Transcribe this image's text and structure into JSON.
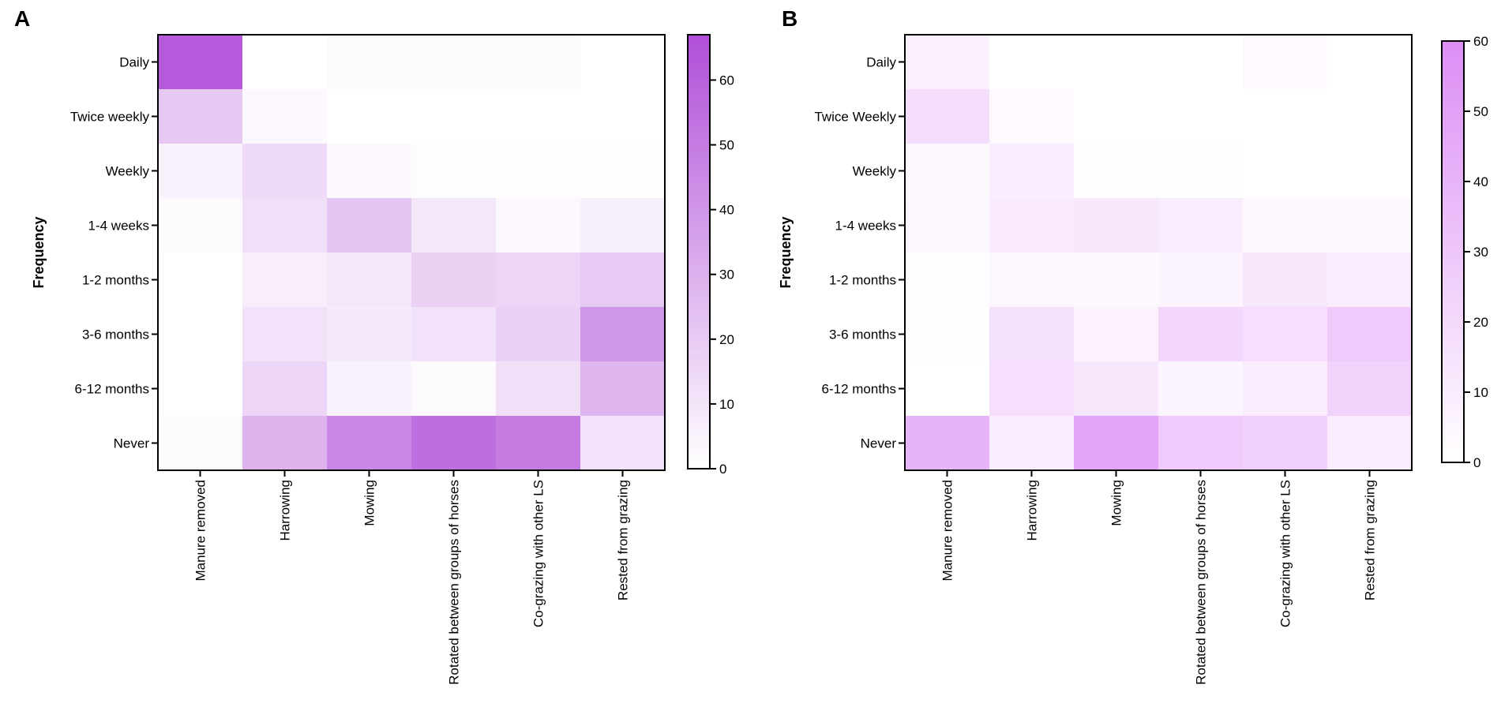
{
  "chart_data": [
    {
      "panel": "A",
      "type": "heatmap",
      "ylabel": "Frequency",
      "rows": [
        "Daily",
        "Twice weekly",
        "Weekly",
        "1-4 weeks",
        "1-2 months",
        "3-6 months",
        "6-12 months",
        "Never"
      ],
      "columns": [
        "Manure removed",
        "Harrowing",
        "Mowing",
        "Rotated between groups of horses",
        "Co-grazing with other LS",
        "Rested from grazing"
      ],
      "values": [
        [
          63,
          0,
          2,
          2,
          2,
          0
        ],
        [
          21,
          3,
          0,
          0,
          0,
          0
        ],
        [
          5,
          14,
          3,
          1,
          1,
          1
        ],
        [
          2,
          12,
          22,
          9,
          3,
          6
        ],
        [
          0,
          7,
          9,
          17,
          16,
          20
        ],
        [
          0,
          11,
          8,
          11,
          18,
          40
        ],
        [
          0,
          16,
          5,
          2,
          12,
          28
        ],
        [
          2,
          29,
          45,
          55,
          50,
          11
        ]
      ],
      "color_range": [
        0,
        67
      ],
      "colorbar_ticks": [
        0,
        10,
        20,
        30,
        40,
        50,
        60
      ],
      "color_min": "#ffffff",
      "color_max": "#b04fd8"
    },
    {
      "panel": "B",
      "type": "heatmap",
      "ylabel": "Frequency",
      "rows": [
        "Daily",
        "Twice Weekly",
        "Weekly",
        "1-4 weeks",
        "1-2 months",
        "3-6 months",
        "6-12 months",
        "Never"
      ],
      "columns": [
        "Manure removed",
        "Harrowing",
        "Mowing",
        "Rotated between groups of horses",
        "Co-grazing with other LS",
        "Rested from grazing"
      ],
      "values": [
        [
          8,
          0,
          0,
          0,
          3,
          0
        ],
        [
          18,
          3,
          0,
          0,
          0,
          0
        ],
        [
          4,
          9,
          1,
          1,
          0,
          0
        ],
        [
          5,
          11,
          12,
          10,
          4,
          4
        ],
        [
          1,
          5,
          4,
          6,
          12,
          10
        ],
        [
          1,
          16,
          7,
          22,
          17,
          28
        ],
        [
          0,
          17,
          13,
          6,
          10,
          24
        ],
        [
          40,
          10,
          48,
          28,
          25,
          10
        ]
      ],
      "color_range": [
        0,
        60
      ],
      "colorbar_ticks": [
        0,
        10,
        20,
        30,
        40,
        50,
        60
      ],
      "color_min": "#ffffff",
      "color_max": "#dc8ef5"
    }
  ],
  "panel_labels": [
    "A",
    "B"
  ]
}
